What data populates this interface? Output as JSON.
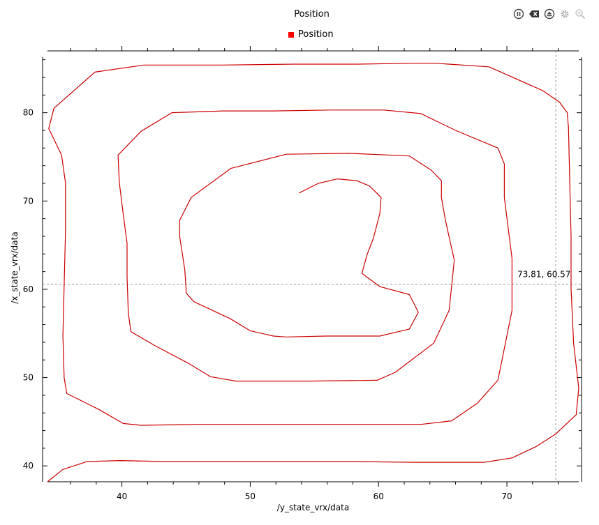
{
  "header": {
    "title": "Position",
    "legend_label": "Position",
    "legend_color": "#ff0000"
  },
  "toolbar": {
    "icons": [
      "pause-icon",
      "clear-icon",
      "eject-icon",
      "settings-icon",
      "zoom-icon"
    ]
  },
  "chart_data": {
    "type": "line",
    "title": "Position",
    "xlabel": "/y_state_vrx/data",
    "ylabel": "/x_state_vrx/data",
    "xlim": [
      34.2,
      75.6
    ],
    "ylim": [
      38.2,
      87.0
    ],
    "xticks": [
      40,
      50,
      60,
      70
    ],
    "yticks": [
      40,
      50,
      60,
      70,
      80
    ],
    "grid": false,
    "legend": "top-center",
    "cursor": {
      "x": 73.81,
      "y": 60.57,
      "label": "73.81, 60.57"
    },
    "series": [
      {
        "name": "Position",
        "color": "#cc0000",
        "x": [
          53.8,
          55.3,
          56.8,
          58.3,
          59.3,
          60.2,
          60.1,
          59.6,
          59.1,
          58.7,
          60.1,
          62.4,
          63.1,
          62.4,
          60.1,
          55.9,
          52.8,
          51.8,
          50.0,
          48.4,
          45.6,
          45.0,
          45.0,
          44.9,
          44.5,
          44.5,
          45.4,
          48.5,
          52.8,
          57.7,
          62.4,
          64.1,
          64.9,
          64.9,
          65.2,
          65.9,
          65.5,
          64.3,
          61.3,
          59.9,
          54.5,
          48.9,
          46.9,
          45.2,
          42.6,
          40.7,
          40.5,
          40.4,
          40.4,
          40.1,
          39.8,
          39.7,
          41.5,
          43.9,
          47.9,
          51.8,
          56.3,
          60.4,
          63.3,
          66.0,
          69.3,
          69.8,
          69.8,
          69.8,
          70.4,
          70.4,
          69.3,
          67.7,
          65.7,
          63.3,
          58.1,
          54.8,
          49.7,
          45.8,
          41.5,
          40.1,
          38.2,
          35.7,
          35.5,
          35.4,
          35.5,
          35.6,
          35.6,
          35.3,
          34.3,
          34.7,
          37.9,
          41.7,
          47.7,
          53.5,
          58.4,
          62.8,
          64.4,
          68.6,
          72.8,
          74.1,
          74.7,
          74.8,
          74.9,
          75.0,
          75.0,
          75.2,
          75.6,
          75.4,
          73.8,
          72.3,
          70.4,
          68.2,
          62.8,
          57.6,
          52.8,
          47.4,
          43.2,
          39.9,
          37.3,
          35.4,
          34.2
        ],
        "y": [
          70.9,
          72.0,
          72.5,
          72.3,
          71.7,
          70.4,
          68.6,
          65.8,
          63.9,
          61.8,
          60.3,
          59.4,
          57.4,
          55.5,
          54.7,
          54.7,
          54.6,
          54.7,
          55.3,
          56.7,
          58.6,
          59.6,
          60.1,
          62.2,
          66.0,
          67.8,
          70.4,
          73.7,
          75.3,
          75.4,
          75.1,
          73.5,
          72.3,
          70.4,
          67.9,
          63.3,
          57.6,
          53.9,
          50.6,
          49.7,
          49.6,
          49.6,
          50.1,
          51.6,
          53.6,
          55.2,
          57.3,
          61.4,
          65.2,
          68.5,
          72.1,
          75.2,
          77.9,
          80.0,
          80.2,
          80.2,
          80.3,
          80.3,
          79.9,
          78.0,
          76.0,
          74.2,
          72.4,
          70.4,
          63.5,
          57.6,
          49.7,
          47.1,
          45.1,
          44.7,
          44.7,
          44.7,
          44.7,
          44.7,
          44.6,
          44.8,
          46.4,
          48.2,
          50.0,
          54.7,
          60.5,
          66.2,
          72.1,
          75.2,
          78.2,
          80.5,
          84.6,
          85.4,
          85.4,
          85.5,
          85.5,
          85.6,
          85.6,
          85.2,
          82.5,
          81.2,
          80.0,
          78.3,
          72.1,
          66.0,
          60.1,
          53.9,
          48.8,
          45.8,
          43.6,
          42.2,
          40.9,
          40.4,
          40.4,
          40.5,
          40.5,
          40.5,
          40.5,
          40.6,
          40.5,
          39.6,
          38.2
        ]
      }
    ]
  }
}
